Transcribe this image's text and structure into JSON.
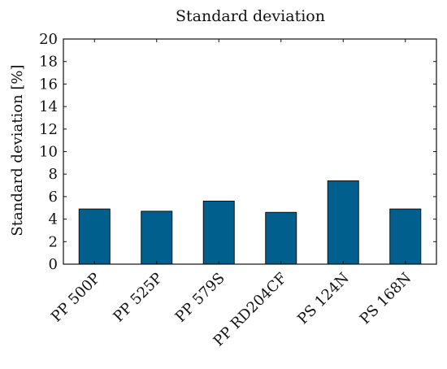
{
  "chart_data": {
    "type": "bar",
    "title": "Standard deviation",
    "ylabel": "Standard deviation [%]",
    "xlabel": "",
    "categories": [
      "PP 500P",
      "PP 525P",
      "PP 579S",
      "PP RD204CF",
      "PS 124N",
      "PS 168N"
    ],
    "values": [
      4.9,
      4.7,
      5.6,
      4.6,
      7.4,
      4.9
    ],
    "ylim": [
      0,
      20
    ],
    "yticks": [
      0,
      2,
      4,
      6,
      8,
      10,
      12,
      14,
      16,
      18,
      20
    ],
    "grid": false,
    "bar_color": "#005f8c"
  }
}
